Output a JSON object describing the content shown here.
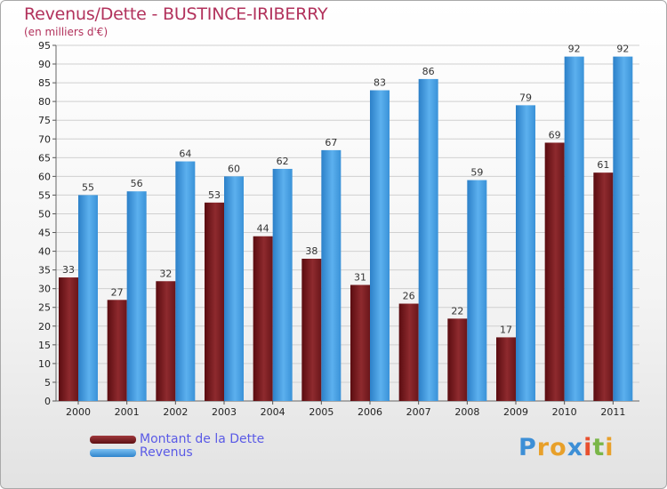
{
  "header": {
    "title": "Revenus/Dette - BUSTINCE-IRIBERRY",
    "subtitle": "(en milliers d'€)"
  },
  "logo": {
    "text": "Proxiti",
    "letters": [
      {
        "ch": "P",
        "color": "#3d8fd6"
      },
      {
        "ch": "r",
        "color": "#e8a02a"
      },
      {
        "ch": "o",
        "color": "#e8a02a"
      },
      {
        "ch": "x",
        "color": "#3d8fd6"
      },
      {
        "ch": "i",
        "color": "#e84f2e"
      },
      {
        "ch": "t",
        "color": "#7ab648"
      },
      {
        "ch": "i",
        "color": "#e8a02a"
      }
    ]
  },
  "chart_data": {
    "type": "bar",
    "title": "Revenus/Dette - BUSTINCE-IRIBERRY",
    "subtitle": "(en milliers d'€)",
    "xlabel": "",
    "ylabel": "",
    "categories": [
      "2000",
      "2001",
      "2002",
      "2003",
      "2004",
      "2005",
      "2006",
      "2007",
      "2008",
      "2009",
      "2010",
      "2011"
    ],
    "series": [
      {
        "name": "Montant de la Dette",
        "color": "#7a1e22",
        "values": [
          33,
          27,
          32,
          53,
          44,
          38,
          31,
          26,
          22,
          17,
          69,
          61
        ]
      },
      {
        "name": "Revenus",
        "color": "#4a9fe0",
        "values": [
          55,
          56,
          64,
          60,
          62,
          67,
          83,
          86,
          59,
          79,
          92,
          92
        ]
      }
    ],
    "ylim": [
      0,
      95
    ],
    "ytick_step": 5,
    "grid": true,
    "legend_position": "bottom-left"
  }
}
